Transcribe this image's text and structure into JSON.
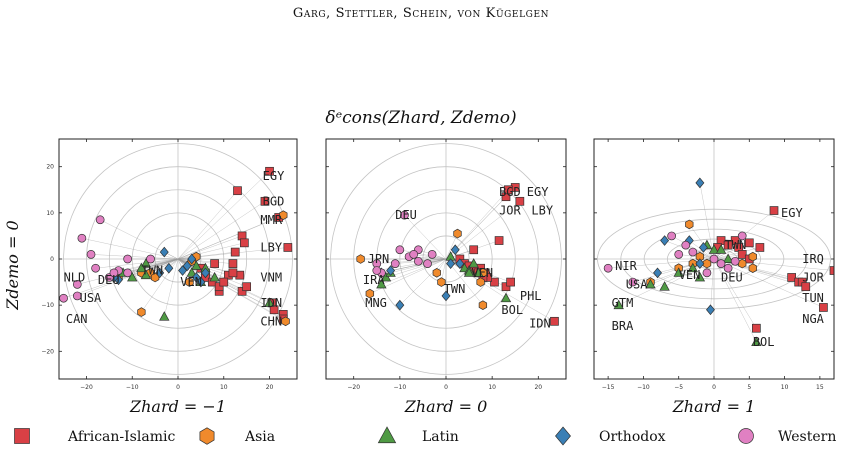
{
  "page_header": "Garg, Stettler, Schein, von Kügelgen",
  "figure_title": "δᵉcons(Zhard, Zdemo)",
  "y_axis_label": "Zdemo = 0",
  "legend": {
    "entries": [
      {
        "name": "African-Islamic",
        "shape": "square",
        "color": "#d94045"
      },
      {
        "name": "Asia",
        "shape": "hexagon",
        "color": "#f08a2c"
      },
      {
        "name": "Latin",
        "shape": "triangle",
        "color": "#4f9a44"
      },
      {
        "name": "Orthodox",
        "shape": "diamond",
        "color": "#3a7fb5"
      },
      {
        "name": "Western",
        "shape": "circle",
        "color": "#e080c2"
      }
    ]
  },
  "chart_data": [
    {
      "type": "scatter",
      "xlabel": "Zhard = −1",
      "ylabel": "Zdemo = 0",
      "xlim": [
        -26,
        26
      ],
      "ylim": [
        -26,
        26
      ],
      "xticks": [
        -20,
        -10,
        0,
        10,
        20
      ],
      "yticks": [
        -20,
        -10,
        0,
        10,
        20
      ],
      "rings": [
        5,
        10,
        15,
        20,
        25
      ],
      "series": [
        {
          "name": "African-Islamic",
          "points": [
            [
              13,
              14.8
            ],
            [
              20,
              19
            ],
            [
              19,
              12.5
            ],
            [
              22,
              9
            ],
            [
              24,
              2.5
            ],
            [
              14,
              5
            ],
            [
              14.5,
              3.5
            ],
            [
              12.5,
              1.5
            ],
            [
              11,
              -3.5
            ],
            [
              8,
              -1
            ],
            [
              13.5,
              -3.5
            ],
            [
              14,
              -7
            ],
            [
              12,
              -1
            ],
            [
              20.5,
              -9.5
            ],
            [
              21,
              -11
            ],
            [
              23,
              -12
            ],
            [
              23,
              -13
            ],
            [
              5,
              -2
            ],
            [
              6,
              -3
            ],
            [
              6,
              -4
            ],
            [
              7.5,
              -5
            ],
            [
              9,
              -7
            ],
            [
              9,
              -6
            ],
            [
              10,
              -5
            ],
            [
              12,
              -3
            ],
            [
              15,
              -6
            ]
          ]
        },
        {
          "name": "Asia",
          "points": [
            [
              23,
              9.5
            ],
            [
              23.5,
              -13.5
            ],
            [
              -8,
              -11.5
            ],
            [
              4,
              0.5
            ],
            [
              3,
              -0.5
            ],
            [
              2.5,
              -5
            ],
            [
              -6,
              -3
            ],
            [
              -8,
              -3
            ],
            [
              -13,
              -4
            ],
            [
              -5,
              -4
            ]
          ]
        },
        {
          "name": "Latin",
          "points": [
            [
              -3,
              -12.5
            ],
            [
              20,
              -9.5
            ],
            [
              -7,
              -1
            ],
            [
              -12,
              -3
            ],
            [
              -8,
              -2
            ],
            [
              -10,
              -4
            ],
            [
              -7,
              -3.5
            ],
            [
              4,
              -1.5
            ],
            [
              3,
              -3
            ],
            [
              6,
              -2
            ],
            [
              8,
              -4
            ],
            [
              5,
              -5
            ]
          ]
        },
        {
          "name": "Orthodox",
          "points": [
            [
              -3,
              1.5
            ],
            [
              -2,
              -2
            ],
            [
              -4,
              -3
            ],
            [
              6,
              -3
            ],
            [
              4,
              -4
            ],
            [
              5,
              -5
            ],
            [
              -13,
              -4.5
            ],
            [
              -14,
              -4
            ],
            [
              2,
              -1.5
            ],
            [
              1,
              -2.5
            ],
            [
              3,
              0
            ]
          ]
        },
        {
          "name": "Western",
          "points": [
            [
              -17,
              8.5
            ],
            [
              -21,
              4.5
            ],
            [
              -19,
              1
            ],
            [
              -11,
              0
            ],
            [
              -18,
              -2
            ],
            [
              -15,
              -4
            ],
            [
              -13,
              -2.5
            ],
            [
              -22,
              -5.5
            ],
            [
              -22,
              -8
            ],
            [
              -25,
              -8.5
            ],
            [
              -11,
              -3
            ],
            [
              -14,
              -3
            ],
            [
              -6,
              0
            ]
          ]
        }
      ],
      "labels": [
        {
          "text": "EGY",
          "x": 18.5,
          "y": 18
        },
        {
          "text": "BGD",
          "x": 18.5,
          "y": 12.5
        },
        {
          "text": "MMR",
          "x": 18,
          "y": 8.5
        },
        {
          "text": "LBY",
          "x": 18,
          "y": 2.5
        },
        {
          "text": "VNM",
          "x": 18,
          "y": -4
        },
        {
          "text": "IDN",
          "x": 18,
          "y": -9.5
        },
        {
          "text": "CHN",
          "x": 18,
          "y": -13.5
        },
        {
          "text": "NLD",
          "x": -25,
          "y": -4
        },
        {
          "text": "DEU",
          "x": -17.5,
          "y": -4.5
        },
        {
          "text": "USA",
          "x": -21.5,
          "y": -8.5
        },
        {
          "text": "CAN",
          "x": -24.5,
          "y": -13
        },
        {
          "text": "TWN",
          "x": -8,
          "y": -2.5
        },
        {
          "text": "VEN",
          "x": 0.5,
          "y": -5
        }
      ]
    },
    {
      "type": "scatter",
      "xlabel": "Zhard = 0",
      "ylabel": "",
      "xlim": [
        -26,
        26
      ],
      "ylim": [
        -26,
        26
      ],
      "xticks": [
        -20,
        -10,
        0,
        10,
        20
      ],
      "yticks": [],
      "rings": [
        5,
        10,
        15,
        20,
        25
      ],
      "series": [
        {
          "name": "African-Islamic",
          "points": [
            [
              15,
              15.5
            ],
            [
              13,
              13.5
            ],
            [
              13.5,
              15
            ],
            [
              16,
              12.5
            ],
            [
              11.5,
              4
            ],
            [
              10.5,
              -5
            ],
            [
              13,
              -6
            ],
            [
              14,
              -5
            ],
            [
              23.5,
              -13.5
            ],
            [
              6,
              2
            ],
            [
              7.5,
              -2
            ],
            [
              8.5,
              -3
            ],
            [
              9,
              -4
            ],
            [
              3,
              0
            ],
            [
              4,
              -1
            ],
            [
              5,
              -1.5
            ],
            [
              6,
              -2.5
            ],
            [
              7,
              -3
            ],
            [
              8,
              -4
            ]
          ]
        },
        {
          "name": "Asia",
          "points": [
            [
              -18.5,
              0
            ],
            [
              -16.5,
              -7.5
            ],
            [
              2.5,
              5.5
            ],
            [
              8,
              -3
            ],
            [
              7.5,
              -5
            ],
            [
              8,
              -10
            ],
            [
              -1,
              -5
            ],
            [
              -2,
              -3
            ]
          ]
        },
        {
          "name": "Latin",
          "points": [
            [
              13,
              -8.5
            ],
            [
              -14,
              -5.5
            ],
            [
              1,
              0.5
            ],
            [
              4,
              -2
            ],
            [
              5,
              -2.5
            ],
            [
              6,
              -1
            ],
            [
              5,
              -3
            ],
            [
              7,
              -3
            ],
            [
              -13,
              -4
            ],
            [
              -12,
              -3
            ]
          ]
        },
        {
          "name": "Orthodox",
          "points": [
            [
              -10,
              -10
            ],
            [
              0,
              -8
            ],
            [
              -12,
              -2.5
            ],
            [
              2,
              2
            ],
            [
              3,
              -1
            ],
            [
              -14,
              -3
            ],
            [
              1,
              -1
            ]
          ]
        },
        {
          "name": "Western",
          "points": [
            [
              -9,
              9.5
            ],
            [
              -10,
              2
            ],
            [
              -15,
              -1
            ],
            [
              -14,
              -3
            ],
            [
              -6,
              2
            ],
            [
              -8,
              0.5
            ],
            [
              -6,
              -0.5
            ],
            [
              -7,
              1
            ],
            [
              -3,
              1
            ],
            [
              -4,
              -1
            ],
            [
              -15,
              -2.5
            ],
            [
              -11,
              -1
            ]
          ]
        }
      ],
      "labels": [
        {
          "text": "BGD",
          "x": 11.5,
          "y": 14.5
        },
        {
          "text": "EGY",
          "x": 17.5,
          "y": 14.5
        },
        {
          "text": "JOR",
          "x": 11.5,
          "y": 10.5
        },
        {
          "text": "LBY",
          "x": 18.5,
          "y": 10.5
        },
        {
          "text": "DEU",
          "x": -11,
          "y": 9.5
        },
        {
          "text": "JPN",
          "x": -17,
          "y": 0
        },
        {
          "text": "IRA",
          "x": -18,
          "y": -4.5
        },
        {
          "text": "MNG",
          "x": -17.5,
          "y": -9.5
        },
        {
          "text": "TWN",
          "x": -0.5,
          "y": -6.5
        },
        {
          "text": "PHL",
          "x": 16,
          "y": -8
        },
        {
          "text": "BOL",
          "x": 12,
          "y": -11
        },
        {
          "text": "IDN",
          "x": 18,
          "y": -14
        },
        {
          "text": "VEN",
          "x": 5.5,
          "y": -3
        }
      ]
    },
    {
      "type": "scatter",
      "xlabel": "Zhard = 1",
      "ylabel": "",
      "xlim": [
        -17,
        17
      ],
      "ylim": [
        -26,
        26
      ],
      "xticks": [
        -15,
        -10,
        -5,
        0,
        5,
        10,
        15
      ],
      "yticks": [],
      "rings": [
        3.3,
        6.6,
        9.9,
        13.2,
        16.5
      ],
      "series": [
        {
          "name": "African-Islamic",
          "points": [
            [
              8.5,
              10.5
            ],
            [
              6,
              -15
            ],
            [
              17,
              -2.5
            ],
            [
              11,
              -4
            ],
            [
              12,
              -5
            ],
            [
              12.5,
              -5
            ],
            [
              13,
              -6
            ],
            [
              15.5,
              -10.5
            ],
            [
              3,
              4
            ],
            [
              3.5,
              2.5
            ],
            [
              5,
              3.5
            ],
            [
              6.5,
              2.5
            ],
            [
              1,
              4
            ],
            [
              0.5,
              2.5
            ],
            [
              2,
              3
            ],
            [
              4,
              1
            ],
            [
              5,
              0
            ]
          ]
        },
        {
          "name": "Asia",
          "points": [
            [
              -3.5,
              7.5
            ],
            [
              -9,
              -5
            ],
            [
              5.5,
              0.5
            ],
            [
              5.5,
              -2
            ],
            [
              4,
              -1
            ],
            [
              -1,
              -1
            ],
            [
              -2,
              0.5
            ],
            [
              -3,
              -1
            ],
            [
              -5,
              -2
            ]
          ]
        },
        {
          "name": "Latin",
          "points": [
            [
              -13.5,
              -10
            ],
            [
              6,
              -18
            ],
            [
              -9,
              -5.5
            ],
            [
              -7,
              -6
            ],
            [
              -5,
              -3
            ],
            [
              -3,
              -2
            ],
            [
              -1,
              3
            ],
            [
              0,
              2
            ],
            [
              1,
              2
            ],
            [
              2,
              0
            ],
            [
              -2,
              -4
            ]
          ]
        },
        {
          "name": "Orthodox",
          "points": [
            [
              -2,
              16.5
            ],
            [
              -0.5,
              -11
            ],
            [
              -7,
              4
            ],
            [
              -3.5,
              4
            ],
            [
              -1.5,
              2.5
            ],
            [
              -2,
              -1
            ],
            [
              -8,
              -3
            ]
          ]
        },
        {
          "name": "Western",
          "points": [
            [
              -15,
              -2
            ],
            [
              -11.5,
              -5
            ],
            [
              -6,
              5
            ],
            [
              0,
              0
            ],
            [
              1,
              -1
            ],
            [
              4,
              5
            ],
            [
              -4,
              3
            ],
            [
              -3,
              1.5
            ],
            [
              2,
              -2
            ],
            [
              3,
              -0.5
            ],
            [
              -5,
              1
            ],
            [
              -1,
              -3
            ]
          ]
        }
      ],
      "labels": [
        {
          "text": "EGY",
          "x": 9.5,
          "y": 10
        },
        {
          "text": "IRQ",
          "x": 12.5,
          "y": 0
        },
        {
          "text": "JOR",
          "x": 12.5,
          "y": -4
        },
        {
          "text": "TUN",
          "x": 12.5,
          "y": -8.5
        },
        {
          "text": "NGA",
          "x": 12.5,
          "y": -13
        },
        {
          "text": "TWN",
          "x": 1.5,
          "y": 3
        },
        {
          "text": "DEU",
          "x": 1,
          "y": -4
        },
        {
          "text": "VEN",
          "x": -5,
          "y": -3.5
        },
        {
          "text": "NIR",
          "x": -14,
          "y": -1.5
        },
        {
          "text": "USA",
          "x": -12.5,
          "y": -5.5
        },
        {
          "text": "GTM",
          "x": -14.5,
          "y": -9.5
        },
        {
          "text": "BRA",
          "x": -14.5,
          "y": -14.5
        },
        {
          "text": "BOL",
          "x": 5.5,
          "y": -18
        }
      ]
    }
  ]
}
